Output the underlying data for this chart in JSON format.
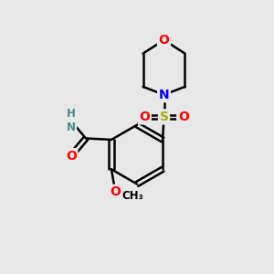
{
  "bg_color": "#e8e8e8",
  "atom_colors": {
    "C": "#000000",
    "N": "#0000ff",
    "O": "#ff0000",
    "S": "#aaaa00",
    "H": "#4a8a8a"
  },
  "bond_color": "#000000",
  "bond_width": 1.8,
  "figsize": [
    3.0,
    3.0
  ],
  "dpi": 100
}
